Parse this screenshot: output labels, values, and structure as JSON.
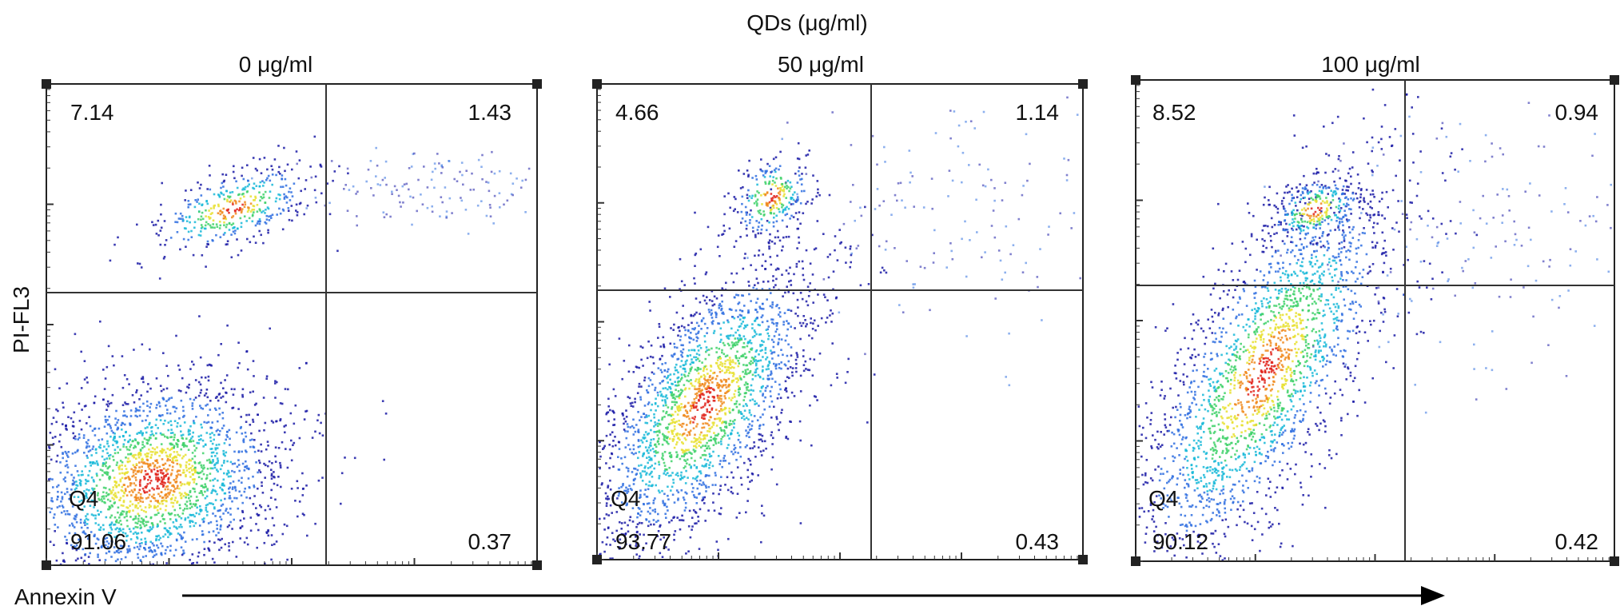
{
  "figure": {
    "top_label": "QDs (μg/ml)",
    "y_axis_label": "PI-FL3",
    "x_axis_label": "Annexin V"
  },
  "panels": [
    {
      "title": "0 μg/ml",
      "q_ul": "7.14",
      "q_ur": "1.43",
      "q_ll": "91.06",
      "q_lr": "0.37",
      "gate": "Q4"
    },
    {
      "title": "50 μg/ml",
      "q_ul": "4.66",
      "q_ur": "1.14",
      "q_ll": "93.77",
      "q_lr": "0.43",
      "gate": "Q4"
    },
    {
      "title": "100 μg/ml",
      "q_ul": "8.52",
      "q_ur": "0.94",
      "q_ll": "90.12",
      "q_lr": "0.42",
      "gate": "Q4"
    }
  ],
  "chart_data": [
    {
      "type": "scatter",
      "title": "0 μg/ml",
      "xlabel": "Annexin V",
      "ylabel": "PI-FL3",
      "quadrant_percentages": {
        "upper_left": 7.14,
        "upper_right": 1.43,
        "lower_left": 91.06,
        "lower_right": 0.37
      },
      "gate_label": "Q4",
      "colors": [
        "#1a1aa6",
        "#2f6fe0",
        "#18b8d8",
        "#3fd16a",
        "#e8e030",
        "#f08a1c",
        "#e0221a"
      ]
    },
    {
      "type": "scatter",
      "title": "50 μg/ml",
      "xlabel": "Annexin V",
      "ylabel": "PI-FL3",
      "quadrant_percentages": {
        "upper_left": 4.66,
        "upper_right": 1.14,
        "lower_left": 93.77,
        "lower_right": 0.43
      },
      "gate_label": "Q4",
      "colors": [
        "#1a1aa6",
        "#2f6fe0",
        "#18b8d8",
        "#3fd16a",
        "#e8e030",
        "#f08a1c",
        "#e0221a"
      ]
    },
    {
      "type": "scatter",
      "title": "100 μg/ml",
      "xlabel": "Annexin V",
      "ylabel": "PI-FL3",
      "quadrant_percentages": {
        "upper_left": 8.52,
        "upper_right": 0.94,
        "lower_left": 90.12,
        "lower_right": 0.42
      },
      "gate_label": "Q4",
      "colors": [
        "#1a1aa6",
        "#2f6fe0",
        "#18b8d8",
        "#3fd16a",
        "#e8e030",
        "#f08a1c",
        "#e0221a"
      ]
    }
  ]
}
